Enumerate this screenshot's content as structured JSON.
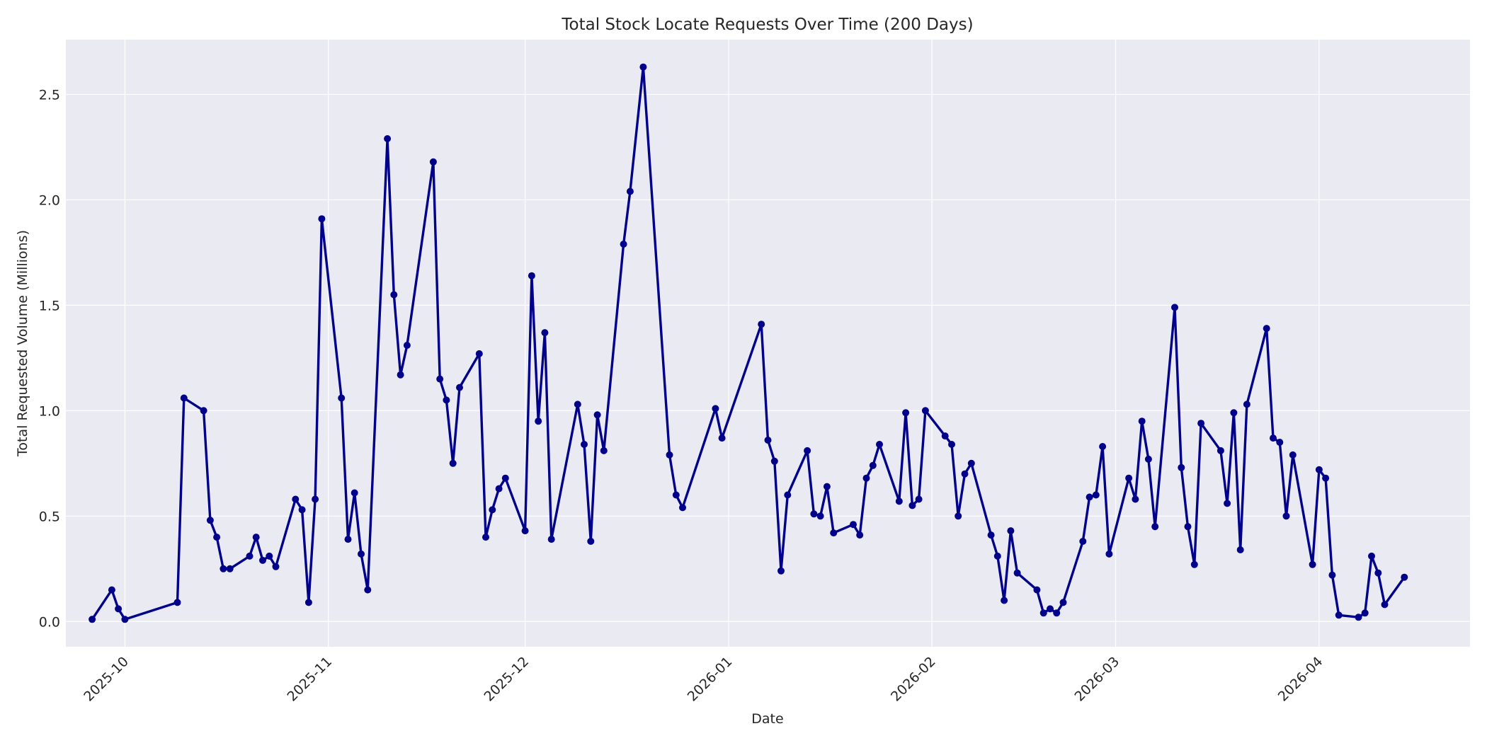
{
  "chart_data": {
    "type": "line",
    "title": "Total Stock Locate Requests Over Time (200 Days)",
    "xlabel": "Date",
    "ylabel": "Total Requested Volume (Millions)",
    "x_tick_labels": [
      "2025-10",
      "2025-11",
      "2025-12",
      "2026-01",
      "2026-02",
      "2026-03",
      "2026-04"
    ],
    "x_tick_dates": [
      "2025-10-01",
      "2025-11-01",
      "2025-12-01",
      "2026-01-01",
      "2026-02-01",
      "2026-03-01",
      "2026-04-01"
    ],
    "xlim": [
      "2025-09-22",
      "2026-04-24"
    ],
    "y_ticks": [
      0.0,
      0.5,
      1.0,
      1.5,
      2.0,
      2.5
    ],
    "y_tick_labels": [
      "0.0",
      "0.5",
      "1.0",
      "1.5",
      "2.0",
      "2.5"
    ],
    "ylim": [
      -0.12,
      2.76
    ],
    "grid": true,
    "colors": {
      "line": "#00008b",
      "plot_background": "#eaeaf2",
      "grid": "#ffffff"
    },
    "series": [
      {
        "points": [
          [
            "2025-09-26",
            0.01
          ],
          [
            "2025-09-29",
            0.15
          ],
          [
            "2025-09-30",
            0.06
          ],
          [
            "2025-10-01",
            0.01
          ],
          [
            "2025-10-09",
            0.09
          ],
          [
            "2025-10-10",
            1.06
          ],
          [
            "2025-10-13",
            1.0
          ],
          [
            "2025-10-14",
            0.48
          ],
          [
            "2025-10-15",
            0.4
          ],
          [
            "2025-10-16",
            0.25
          ],
          [
            "2025-10-17",
            0.25
          ],
          [
            "2025-10-20",
            0.31
          ],
          [
            "2025-10-21",
            0.4
          ],
          [
            "2025-10-22",
            0.29
          ],
          [
            "2025-10-23",
            0.31
          ],
          [
            "2025-10-24",
            0.26
          ],
          [
            "2025-10-27",
            0.58
          ],
          [
            "2025-10-28",
            0.53
          ],
          [
            "2025-10-29",
            0.09
          ],
          [
            "2025-10-30",
            0.58
          ],
          [
            "2025-10-31",
            1.91
          ],
          [
            "2025-11-03",
            1.06
          ],
          [
            "2025-11-04",
            0.39
          ],
          [
            "2025-11-05",
            0.61
          ],
          [
            "2025-11-06",
            0.32
          ],
          [
            "2025-11-07",
            0.15
          ],
          [
            "2025-11-10",
            2.29
          ],
          [
            "2025-11-11",
            1.55
          ],
          [
            "2025-11-12",
            1.17
          ],
          [
            "2025-11-13",
            1.31
          ],
          [
            "2025-11-17",
            2.18
          ],
          [
            "2025-11-18",
            1.15
          ],
          [
            "2025-11-19",
            1.05
          ],
          [
            "2025-11-20",
            0.75
          ],
          [
            "2025-11-21",
            1.11
          ],
          [
            "2025-11-24",
            1.27
          ],
          [
            "2025-11-25",
            0.4
          ],
          [
            "2025-11-26",
            0.53
          ],
          [
            "2025-11-27",
            0.63
          ],
          [
            "2025-11-28",
            0.68
          ],
          [
            "2025-12-01",
            0.43
          ],
          [
            "2025-12-02",
            1.64
          ],
          [
            "2025-12-03",
            0.95
          ],
          [
            "2025-12-04",
            1.37
          ],
          [
            "2025-12-05",
            0.39
          ],
          [
            "2025-12-09",
            1.03
          ],
          [
            "2025-12-10",
            0.84
          ],
          [
            "2025-12-11",
            0.38
          ],
          [
            "2025-12-12",
            0.98
          ],
          [
            "2025-12-13",
            0.81
          ],
          [
            "2025-12-16",
            1.79
          ],
          [
            "2025-12-17",
            2.04
          ],
          [
            "2025-12-19",
            2.63
          ],
          [
            "2025-12-23",
            0.79
          ],
          [
            "2025-12-24",
            0.6
          ],
          [
            "2025-12-25",
            0.54
          ],
          [
            "2025-12-30",
            1.01
          ],
          [
            "2025-12-31",
            0.87
          ],
          [
            "2026-01-06",
            1.41
          ],
          [
            "2026-01-07",
            0.86
          ],
          [
            "2026-01-08",
            0.76
          ],
          [
            "2026-01-09",
            0.24
          ],
          [
            "2026-01-10",
            0.6
          ],
          [
            "2026-01-13",
            0.81
          ],
          [
            "2026-01-14",
            0.51
          ],
          [
            "2026-01-15",
            0.5
          ],
          [
            "2026-01-16",
            0.64
          ],
          [
            "2026-01-17",
            0.42
          ],
          [
            "2026-01-20",
            0.46
          ],
          [
            "2026-01-21",
            0.41
          ],
          [
            "2026-01-22",
            0.68
          ],
          [
            "2026-01-23",
            0.74
          ],
          [
            "2026-01-24",
            0.84
          ],
          [
            "2026-01-27",
            0.57
          ],
          [
            "2026-01-28",
            0.99
          ],
          [
            "2026-01-29",
            0.55
          ],
          [
            "2026-01-30",
            0.58
          ],
          [
            "2026-01-31",
            1.0
          ],
          [
            "2026-02-03",
            0.88
          ],
          [
            "2026-02-04",
            0.84
          ],
          [
            "2026-02-05",
            0.5
          ],
          [
            "2026-02-06",
            0.7
          ],
          [
            "2026-02-07",
            0.75
          ],
          [
            "2026-02-10",
            0.41
          ],
          [
            "2026-02-11",
            0.31
          ],
          [
            "2026-02-12",
            0.1
          ],
          [
            "2026-02-13",
            0.43
          ],
          [
            "2026-02-14",
            0.23
          ],
          [
            "2026-02-17",
            0.15
          ],
          [
            "2026-02-18",
            0.04
          ],
          [
            "2026-02-19",
            0.06
          ],
          [
            "2026-02-20",
            0.04
          ],
          [
            "2026-02-21",
            0.09
          ],
          [
            "2026-02-24",
            0.38
          ],
          [
            "2026-02-25",
            0.59
          ],
          [
            "2026-02-26",
            0.6
          ],
          [
            "2026-02-27",
            0.83
          ],
          [
            "2026-02-28",
            0.32
          ],
          [
            "2026-03-03",
            0.68
          ],
          [
            "2026-03-04",
            0.58
          ],
          [
            "2026-03-05",
            0.95
          ],
          [
            "2026-03-06",
            0.77
          ],
          [
            "2026-03-07",
            0.45
          ],
          [
            "2026-03-10",
            1.49
          ],
          [
            "2026-03-11",
            0.73
          ],
          [
            "2026-03-12",
            0.45
          ],
          [
            "2026-03-13",
            0.27
          ],
          [
            "2026-03-14",
            0.94
          ],
          [
            "2026-03-17",
            0.81
          ],
          [
            "2026-03-18",
            0.56
          ],
          [
            "2026-03-19",
            0.99
          ],
          [
            "2026-03-20",
            0.34
          ],
          [
            "2026-03-21",
            1.03
          ],
          [
            "2026-03-24",
            1.39
          ],
          [
            "2026-03-25",
            0.87
          ],
          [
            "2026-03-26",
            0.85
          ],
          [
            "2026-03-27",
            0.5
          ],
          [
            "2026-03-28",
            0.79
          ],
          [
            "2026-03-31",
            0.27
          ],
          [
            "2026-04-01",
            0.72
          ],
          [
            "2026-04-02",
            0.68
          ],
          [
            "2026-04-03",
            0.22
          ],
          [
            "2026-04-04",
            0.03
          ],
          [
            "2026-04-07",
            0.02
          ],
          [
            "2026-04-08",
            0.04
          ],
          [
            "2026-04-09",
            0.31
          ],
          [
            "2026-04-10",
            0.23
          ],
          [
            "2026-04-11",
            0.08
          ],
          [
            "2026-04-14",
            0.21
          ]
        ]
      }
    ]
  }
}
